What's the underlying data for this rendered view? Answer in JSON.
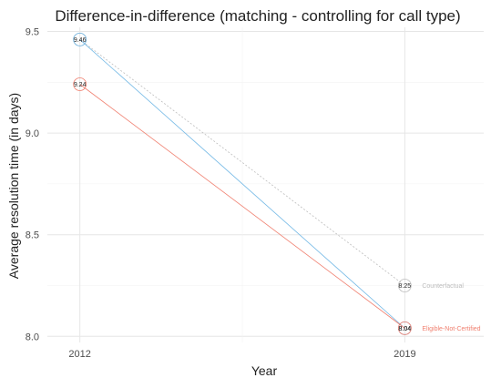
{
  "chart_data": {
    "type": "line",
    "title": "Difference-in-difference (matching - controlling for call type)",
    "xlabel": "Year",
    "ylabel": "Average resolution time (in days)",
    "x": [
      2012,
      2019
    ],
    "x_ticks": [
      "2012",
      "2019"
    ],
    "y_ticks": [
      "8.0",
      "8.5",
      "9.0",
      "9.5"
    ],
    "xlim": [
      2011.3,
      2020.7
    ],
    "ylim": [
      7.97,
      9.52
    ],
    "grid": true,
    "legend": "none",
    "series": [
      {
        "name": "Counterfactual",
        "values": [
          9.46,
          8.25
        ],
        "labels": [
          "",
          "8.25"
        ],
        "color": "#bdbdbd",
        "dashed": true
      },
      {
        "name": "",
        "values": [
          9.46,
          8.04
        ],
        "labels": [
          "9.46",
          "8.04"
        ],
        "color": "#74b9e6",
        "dashed": false
      },
      {
        "name": "Eligible-Not-Certified",
        "values": [
          9.24,
          8.04
        ],
        "labels": [
          "9.24",
          "8.04"
        ],
        "color": "#f08070",
        "dashed": false
      }
    ],
    "end_labels": [
      {
        "text": "Counterfactual",
        "y": 8.25,
        "color": "#bdbdbd"
      },
      {
        "text": "Eligible-Not-Certified",
        "y": 8.04,
        "color": "#f08070"
      }
    ]
  }
}
